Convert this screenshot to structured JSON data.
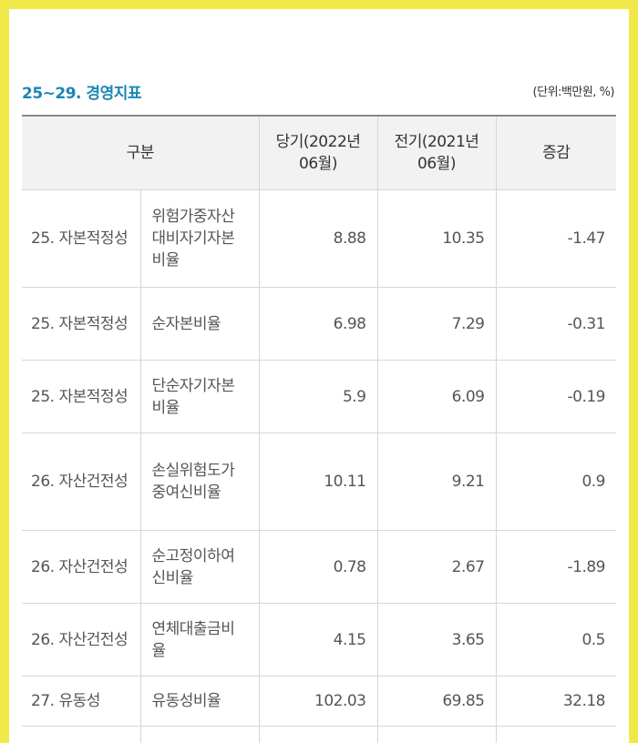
{
  "section": {
    "title": "25~29. 경영지표",
    "unit": "(단위:백만원, %)"
  },
  "table": {
    "headers": {
      "category": "구분",
      "current": "당기(2022년 06월)",
      "previous": "전기(2021년 06월)",
      "change": "증감"
    },
    "rows": [
      {
        "category": "25. 자본적정성",
        "item": "위험가중자산대비자기자본비율",
        "current": "8.88",
        "previous": "10.35",
        "change": "-1.47"
      },
      {
        "category": "25. 자본적정성",
        "item": "순자본비율",
        "current": "6.98",
        "previous": "7.29",
        "change": "-0.31"
      },
      {
        "category": "25. 자본적정성",
        "item": "단순자기자본비율",
        "current": "5.9",
        "previous": "6.09",
        "change": "-0.19"
      },
      {
        "category": "26. 자산건전성",
        "item": "손실위험도가중여신비율",
        "current": "10.11",
        "previous": "9.21",
        "change": "0.9"
      },
      {
        "category": "26. 자산건전성",
        "item": "순고정이하여신비율",
        "current": "0.78",
        "previous": "2.67",
        "change": "-1.89"
      },
      {
        "category": "26. 자산건전성",
        "item": "연체대출금비율",
        "current": "4.15",
        "previous": "3.65",
        "change": "0.5"
      },
      {
        "category": "27. 유동성",
        "item": "유동성비율",
        "current": "102.03",
        "previous": "69.85",
        "change": "32.18"
      }
    ]
  }
}
